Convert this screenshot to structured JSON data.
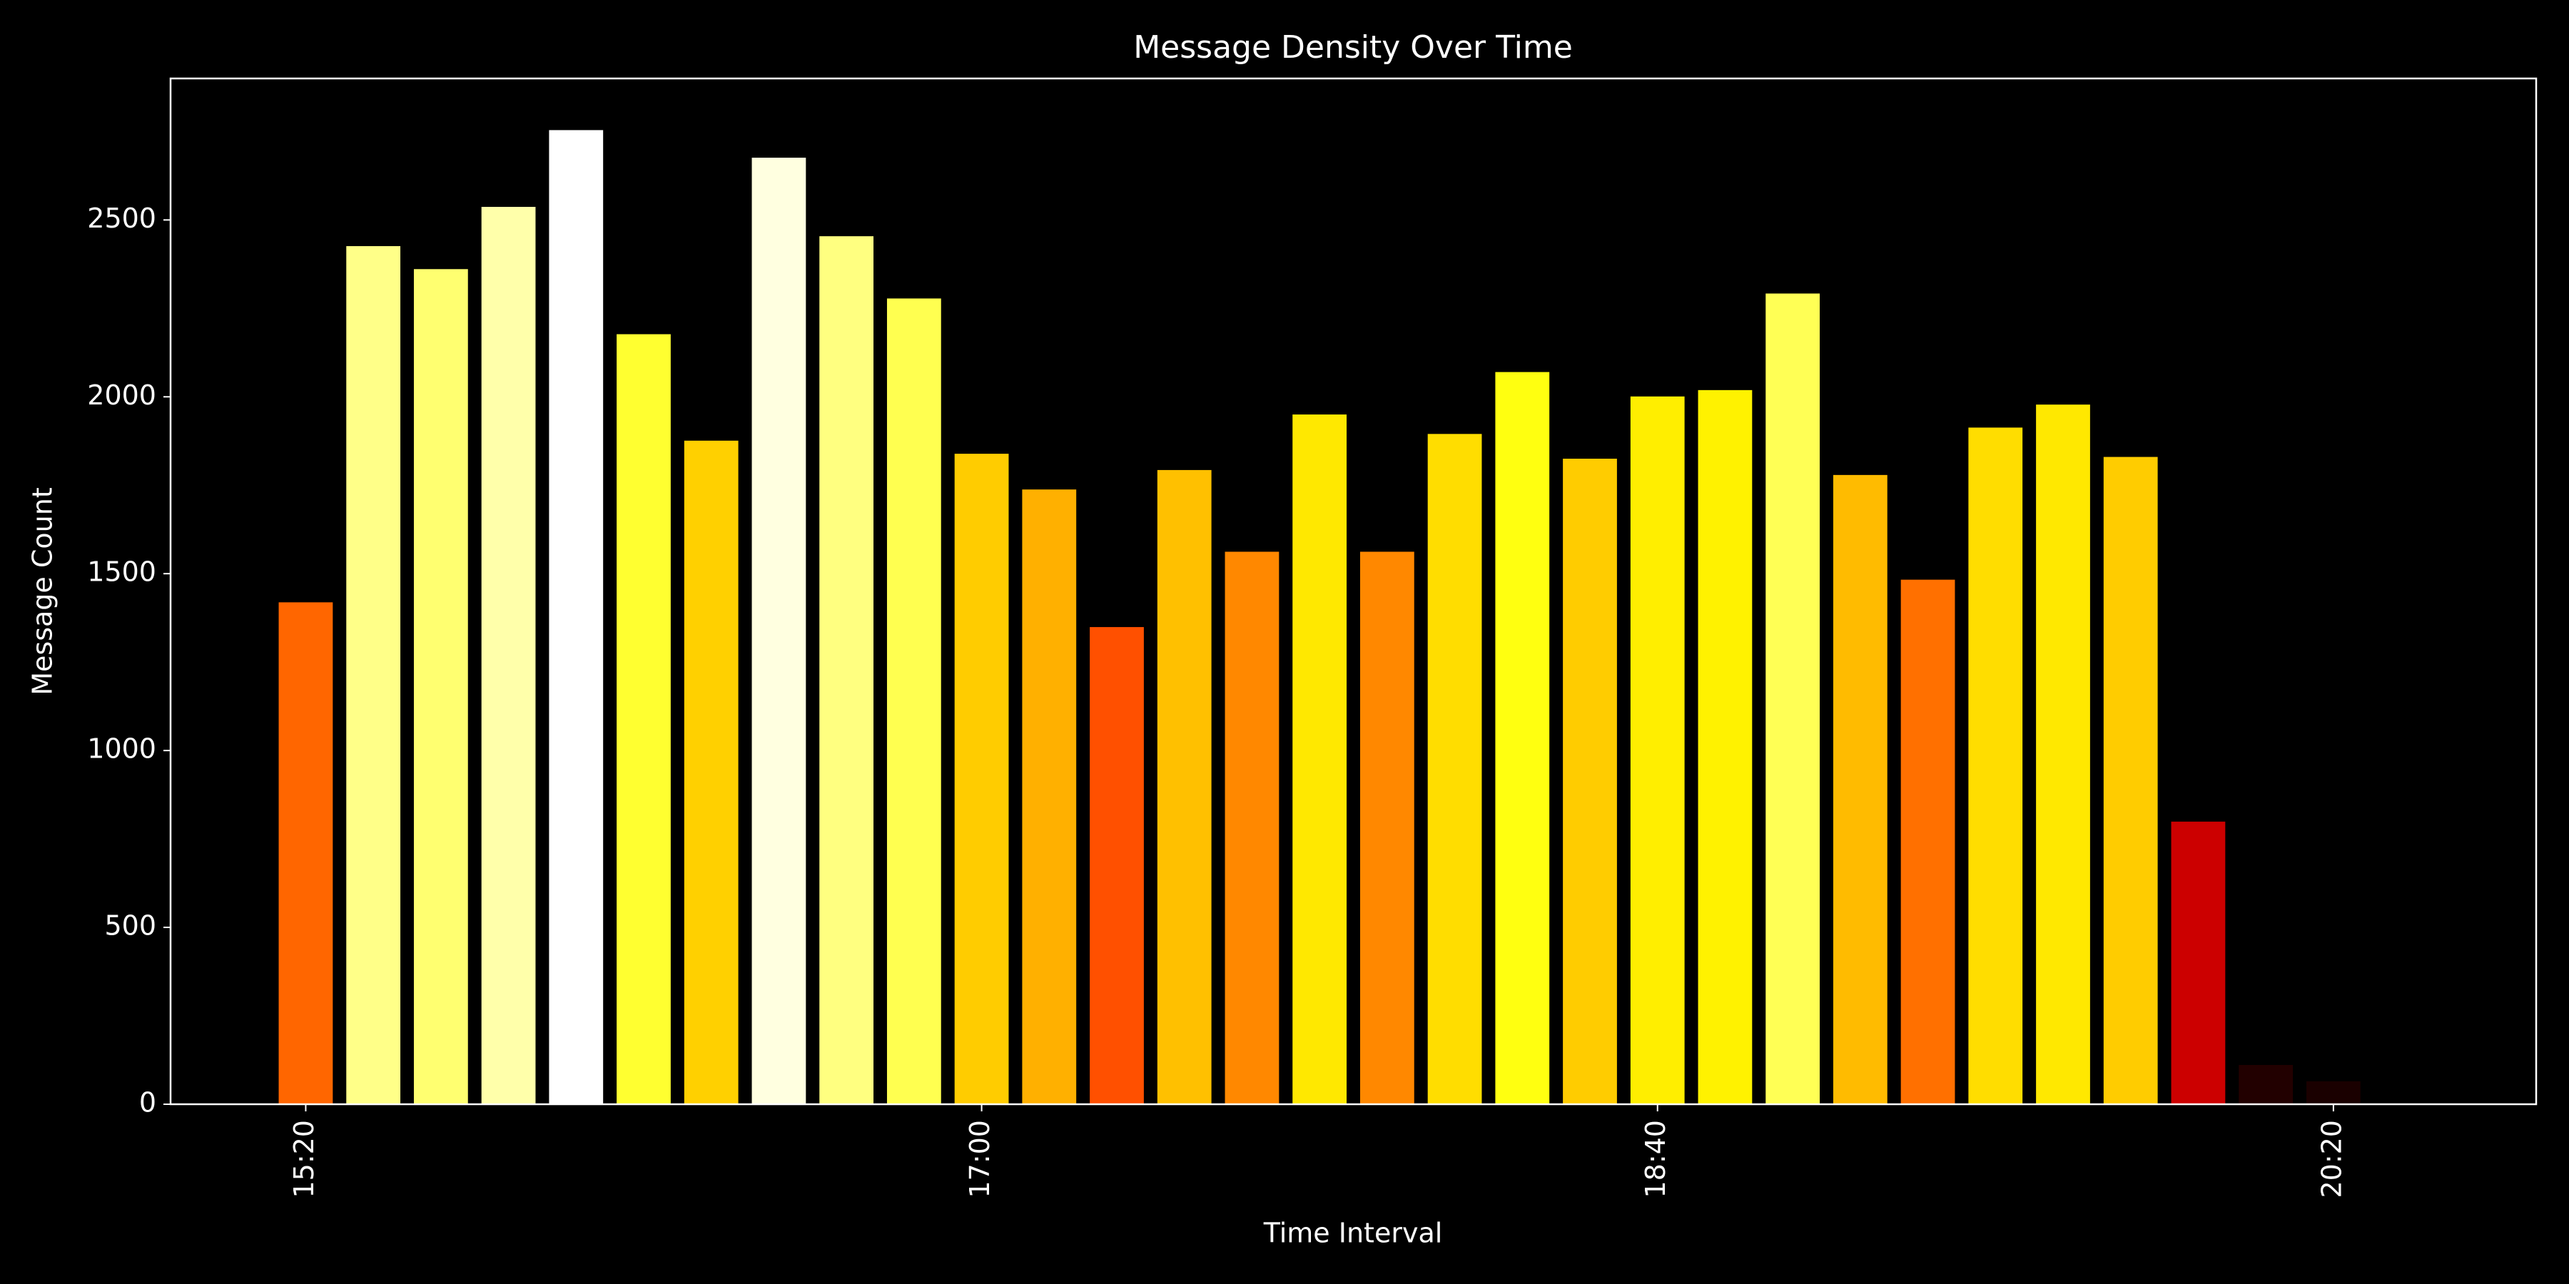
{
  "chart_data": {
    "type": "bar",
    "title": "Message Density Over Time",
    "x_label": "Time Interval",
    "y_label": "Message Count",
    "x": [
      "15:20",
      "15:30",
      "15:40",
      "15:50",
      "16:00",
      "16:10",
      "16:20",
      "16:30",
      "16:40",
      "16:50",
      "17:00",
      "17:10",
      "17:20",
      "17:30",
      "17:40",
      "17:50",
      "18:00",
      "18:10",
      "18:20",
      "18:30",
      "18:40",
      "18:50",
      "19:00",
      "19:10",
      "19:20",
      "19:30",
      "19:40",
      "19:50",
      "20:00",
      "20:10",
      "20:20"
    ],
    "values": [
      1419,
      2426,
      2361,
      2537,
      2754,
      2177,
      1876,
      2676,
      2454,
      2278,
      1839,
      1738,
      1349,
      1793,
      1562,
      1950,
      1562,
      1895,
      2070,
      1825,
      2001,
      2019,
      2292,
      1779,
      1483,
      1913,
      1978,
      1830,
      799,
      111,
      65
    ],
    "colors": [
      "#ff6600",
      "#ffff88",
      "#ffff70",
      "#ffffaa",
      "#ffffff",
      "#ffff30",
      "#ffd000",
      "#ffffe0",
      "#ffff80",
      "#ffff50",
      "#ffcc00",
      "#ffb000",
      "#ff5000",
      "#ffc000",
      "#ff8800",
      "#ffe800",
      "#ff8800",
      "#ffdd00",
      "#ffff10",
      "#ffcc00",
      "#ffee00",
      "#fff200",
      "#ffff55",
      "#ffbb00",
      "#ff7000",
      "#ffdd00",
      "#ffe800",
      "#ffcc00",
      "#cc0000",
      "#220000",
      "#1a0000"
    ],
    "xlim": [
      "15:00",
      "20:50"
    ],
    "xticks": [
      "15:20",
      "17:00",
      "18:40",
      "20:20"
    ],
    "ylim": [
      0,
      2900
    ],
    "yticks": [
      0,
      500,
      1000,
      1500,
      2000,
      2500
    ]
  }
}
